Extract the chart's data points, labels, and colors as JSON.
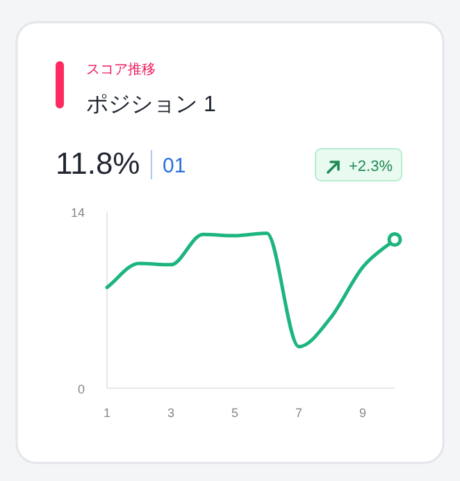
{
  "chart_data": {
    "type": "line",
    "subtitle": "スコア推移",
    "title": "ポジション 1",
    "annotations": [
      "11.8%",
      "01",
      "+2.3%"
    ],
    "x": [
      1,
      2,
      3,
      4,
      5,
      6,
      7,
      8,
      9,
      10
    ],
    "series": [
      {
        "color": "#1db57e",
        "marker": "none",
        "values": [
          8.0,
          9.9,
          9.8,
          12.2,
          12.1,
          12.3,
          3.3,
          5.6,
          9.6,
          11.8
        ]
      },
      {
        "type": "scatter",
        "color": "#1db57e",
        "marker": "circle",
        "x": [
          10
        ],
        "values": [
          11.8
        ]
      }
    ],
    "xlim": [
      1,
      10
    ],
    "xticks": [
      1,
      3,
      5,
      7,
      9
    ],
    "ylim": [
      0,
      14
    ],
    "yticks": [
      0,
      14
    ],
    "grid": false
  }
}
